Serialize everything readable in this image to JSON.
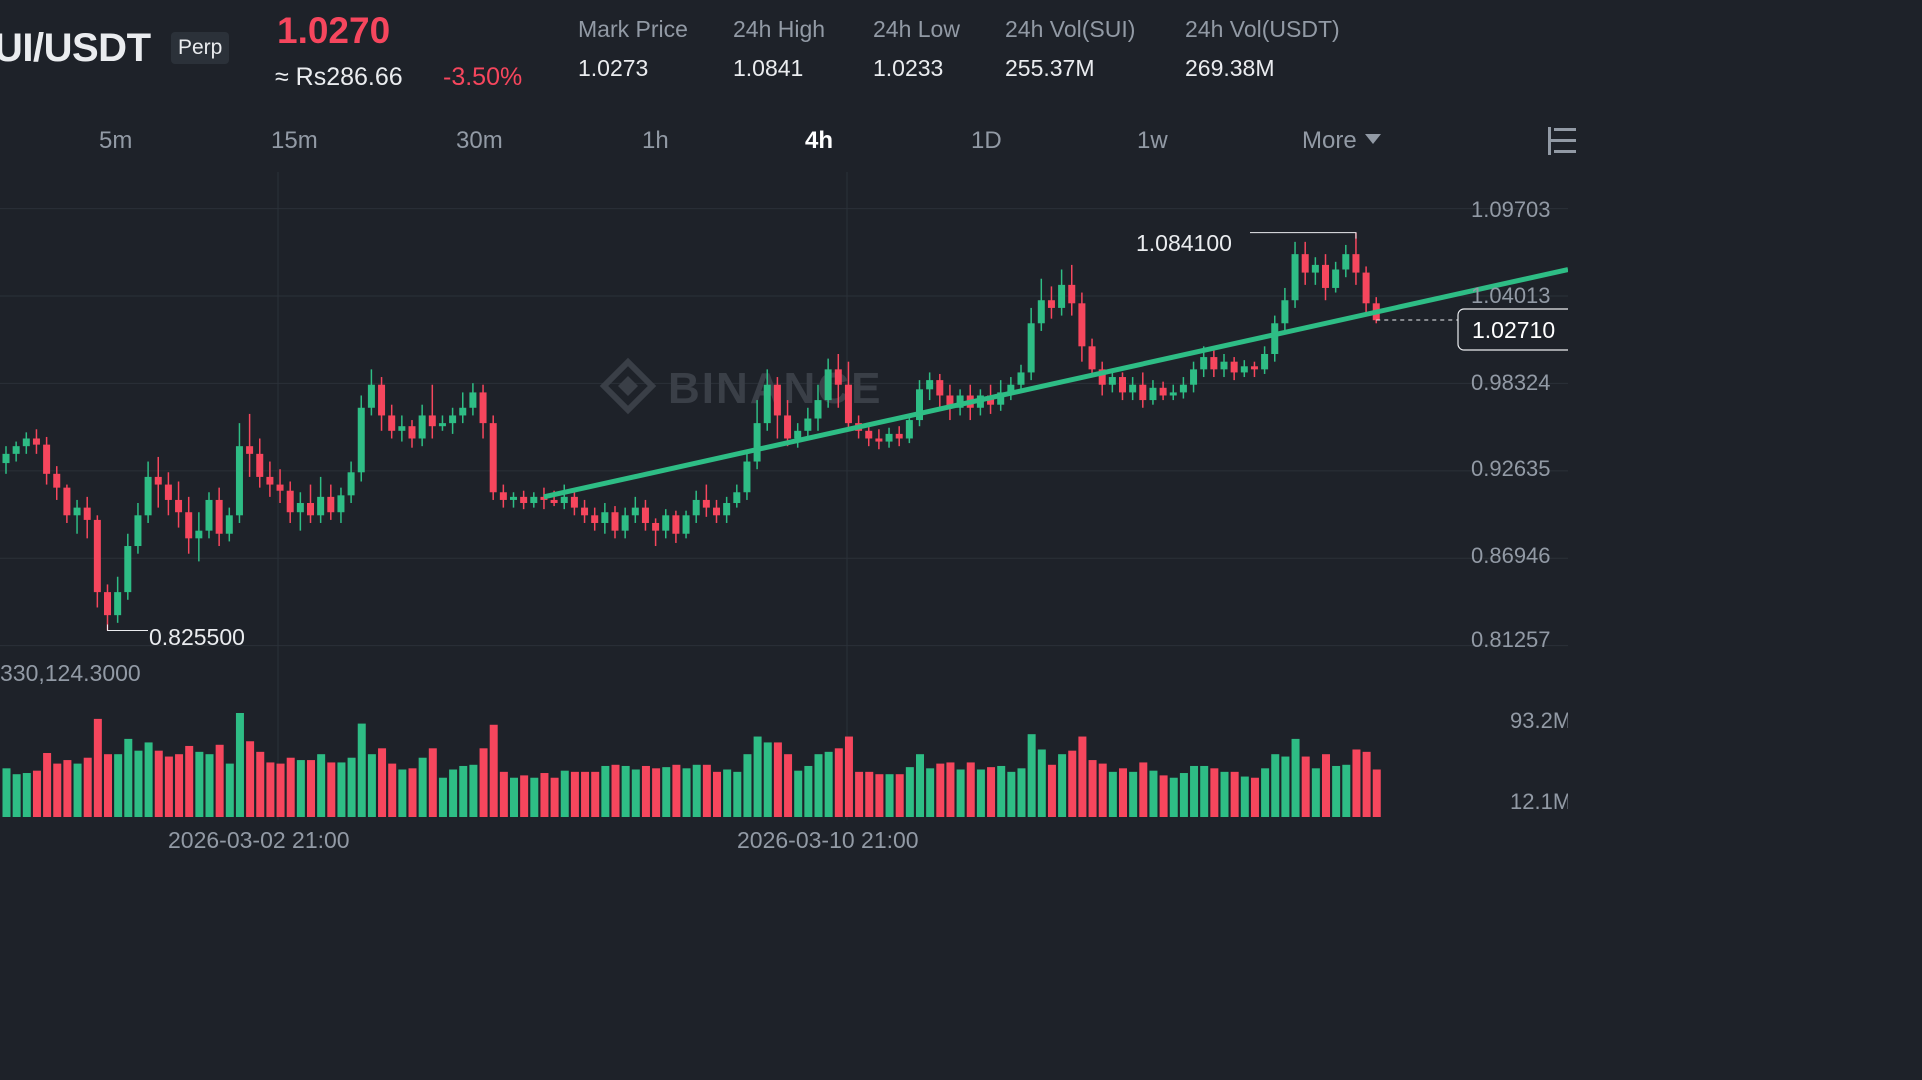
{
  "header": {
    "pair": "UI/USDT",
    "contract_type": "Perp",
    "last_price": "1.0270",
    "fiat_price": "≈ Rs286.66",
    "change_pct": "-3.50%",
    "stats": [
      {
        "label": "Mark Price",
        "value": "1.0273"
      },
      {
        "label": "24h High",
        "value": "1.0841"
      },
      {
        "label": "24h Low",
        "value": "1.0233"
      },
      {
        "label": "24h Vol(SUI)",
        "value": "255.37M"
      },
      {
        "label": "24h Vol(USDT)",
        "value": "269.38M"
      }
    ]
  },
  "timeframes": {
    "items": [
      "5m",
      "15m",
      "30m",
      "1h",
      "4h",
      "1D",
      "1w",
      "More"
    ],
    "active": "4h"
  },
  "icons": {
    "more": "caret-down-icon",
    "settings": "chart-settings-icon"
  },
  "colors": {
    "up": "#2ebd85",
    "down": "#f6465d",
    "trendline": "#2ebd85",
    "background": "#1e2229",
    "text_muted": "#929aa5"
  },
  "chart": {
    "watermark": "BINANCE",
    "price_axis": [
      "1.09703",
      "1.04013",
      "0.98324",
      "0.92635",
      "0.86946",
      "0.81257"
    ],
    "current_price_tag": "1.02710",
    "high_label": "1.084100",
    "low_label": "0.825500",
    "volume_header": "330,124.3000",
    "volume_axis": [
      "93.2M",
      "12.1M"
    ],
    "date_labels": [
      "2026-03-02 21:00",
      "2026-03-10 21:00"
    ]
  },
  "chart_data": {
    "type": "candlestick",
    "interval": "4h",
    "ylim": [
      0.7993,
      1.1085
    ],
    "y_ticks": [
      1.09703,
      1.04013,
      0.98324,
      0.92635,
      0.86946,
      0.81257
    ],
    "x_tick_labels": [
      "2026-03-02 21:00",
      "2026-03-10 21:00"
    ],
    "candles_ohlc": [
      [
        0.934,
        0.94,
        0.927,
        0.945
      ],
      [
        0.94,
        0.945,
        0.935,
        0.948
      ],
      [
        0.945,
        0.95,
        0.94,
        0.954
      ],
      [
        0.95,
        0.946,
        0.94,
        0.956
      ],
      [
        0.946,
        0.927,
        0.92,
        0.951
      ],
      [
        0.927,
        0.918,
        0.91,
        0.932
      ],
      [
        0.918,
        0.9,
        0.895,
        0.92
      ],
      [
        0.9,
        0.905,
        0.888,
        0.91
      ],
      [
        0.905,
        0.897,
        0.885,
        0.912
      ],
      [
        0.897,
        0.85,
        0.84,
        0.9
      ],
      [
        0.85,
        0.835,
        0.825,
        0.855
      ],
      [
        0.835,
        0.85,
        0.83,
        0.86
      ],
      [
        0.85,
        0.88,
        0.845,
        0.888
      ],
      [
        0.88,
        0.9,
        0.875,
        0.908
      ],
      [
        0.9,
        0.925,
        0.895,
        0.935
      ],
      [
        0.925,
        0.92,
        0.905,
        0.938
      ],
      [
        0.92,
        0.91,
        0.9,
        0.928
      ],
      [
        0.91,
        0.902,
        0.892,
        0.922
      ],
      [
        0.902,
        0.885,
        0.875,
        0.912
      ],
      [
        0.885,
        0.89,
        0.87,
        0.902
      ],
      [
        0.89,
        0.91,
        0.885,
        0.915
      ],
      [
        0.91,
        0.888,
        0.88,
        0.918
      ],
      [
        0.888,
        0.9,
        0.883,
        0.905
      ],
      [
        0.9,
        0.945,
        0.895,
        0.96
      ],
      [
        0.945,
        0.94,
        0.925,
        0.966
      ],
      [
        0.94,
        0.925,
        0.918,
        0.95
      ],
      [
        0.925,
        0.92,
        0.912,
        0.935
      ],
      [
        0.92,
        0.916,
        0.908,
        0.93
      ],
      [
        0.916,
        0.902,
        0.895,
        0.922
      ],
      [
        0.902,
        0.908,
        0.89,
        0.915
      ],
      [
        0.908,
        0.9,
        0.895,
        0.92
      ],
      [
        0.9,
        0.912,
        0.895,
        0.925
      ],
      [
        0.912,
        0.902,
        0.897,
        0.92
      ],
      [
        0.902,
        0.913,
        0.895,
        0.918
      ],
      [
        0.913,
        0.928,
        0.908,
        0.935
      ],
      [
        0.928,
        0.97,
        0.922,
        0.978
      ],
      [
        0.97,
        0.985,
        0.965,
        0.995
      ],
      [
        0.985,
        0.965,
        0.955,
        0.99
      ],
      [
        0.965,
        0.955,
        0.95,
        0.972
      ],
      [
        0.955,
        0.958,
        0.948,
        0.965
      ],
      [
        0.958,
        0.95,
        0.944,
        0.962
      ],
      [
        0.95,
        0.965,
        0.945,
        0.972
      ],
      [
        0.965,
        0.958,
        0.95,
        0.985
      ],
      [
        0.958,
        0.96,
        0.955,
        0.965
      ],
      [
        0.96,
        0.965,
        0.953,
        0.97
      ],
      [
        0.965,
        0.97,
        0.96,
        0.98
      ],
      [
        0.97,
        0.98,
        0.965,
        0.986
      ],
      [
        0.98,
        0.96,
        0.95,
        0.985
      ],
      [
        0.96,
        0.915,
        0.91,
        0.965
      ],
      [
        0.915,
        0.91,
        0.905,
        0.92
      ],
      [
        0.91,
        0.912,
        0.905,
        0.915
      ],
      [
        0.912,
        0.908,
        0.904,
        0.916
      ],
      [
        0.908,
        0.912,
        0.905,
        0.915
      ],
      [
        0.912,
        0.91,
        0.904,
        0.918
      ],
      [
        0.91,
        0.908,
        0.906,
        0.916
      ],
      [
        0.908,
        0.912,
        0.904,
        0.92
      ],
      [
        0.912,
        0.905,
        0.9,
        0.915
      ],
      [
        0.905,
        0.9,
        0.895,
        0.91
      ],
      [
        0.9,
        0.895,
        0.89,
        0.905
      ],
      [
        0.895,
        0.902,
        0.888,
        0.908
      ],
      [
        0.902,
        0.89,
        0.885,
        0.906
      ],
      [
        0.89,
        0.9,
        0.885,
        0.905
      ],
      [
        0.9,
        0.905,
        0.895,
        0.912
      ],
      [
        0.905,
        0.895,
        0.89,
        0.91
      ],
      [
        0.895,
        0.89,
        0.88,
        0.898
      ],
      [
        0.89,
        0.9,
        0.885,
        0.904
      ],
      [
        0.9,
        0.888,
        0.882,
        0.903
      ],
      [
        0.888,
        0.9,
        0.885,
        0.903
      ],
      [
        0.9,
        0.91,
        0.895,
        0.916
      ],
      [
        0.91,
        0.905,
        0.899,
        0.92
      ],
      [
        0.905,
        0.9,
        0.895,
        0.91
      ],
      [
        0.9,
        0.908,
        0.895,
        0.912
      ],
      [
        0.908,
        0.915,
        0.905,
        0.92
      ],
      [
        0.915,
        0.935,
        0.91,
        0.94
      ],
      [
        0.935,
        0.96,
        0.93,
        0.975
      ],
      [
        0.96,
        0.985,
        0.955,
        0.995
      ],
      [
        0.985,
        0.965,
        0.95,
        0.99
      ],
      [
        0.965,
        0.95,
        0.945,
        0.975
      ],
      [
        0.95,
        0.955,
        0.944,
        0.96
      ],
      [
        0.955,
        0.963,
        0.95,
        0.97
      ],
      [
        0.963,
        0.975,
        0.955,
        0.985
      ],
      [
        0.975,
        0.995,
        0.97,
        1.002
      ],
      [
        0.995,
        0.985,
        0.97,
        1.005
      ],
      [
        0.985,
        0.96,
        0.955,
        1.0
      ],
      [
        0.96,
        0.955,
        0.95,
        0.965
      ],
      [
        0.955,
        0.95,
        0.945,
        0.96
      ],
      [
        0.95,
        0.948,
        0.943,
        0.956
      ],
      [
        0.948,
        0.953,
        0.944,
        0.957
      ],
      [
        0.953,
        0.95,
        0.945,
        0.958
      ],
      [
        0.95,
        0.962,
        0.947,
        0.966
      ],
      [
        0.962,
        0.982,
        0.958,
        0.988
      ],
      [
        0.982,
        0.988,
        0.975,
        0.993
      ],
      [
        0.988,
        0.978,
        0.97,
        0.992
      ],
      [
        0.978,
        0.97,
        0.962,
        0.985
      ],
      [
        0.97,
        0.978,
        0.965,
        0.982
      ],
      [
        0.978,
        0.97,
        0.962,
        0.985
      ],
      [
        0.97,
        0.978,
        0.965,
        0.982
      ],
      [
        0.978,
        0.972,
        0.966,
        0.985
      ],
      [
        0.972,
        0.98,
        0.968,
        0.988
      ],
      [
        0.98,
        0.985,
        0.975,
        0.99
      ],
      [
        0.985,
        0.993,
        0.98,
        0.998
      ],
      [
        0.993,
        1.025,
        0.988,
        1.035
      ],
      [
        1.025,
        1.04,
        1.02,
        1.054
      ],
      [
        1.04,
        1.035,
        1.028,
        1.049
      ],
      [
        1.035,
        1.05,
        1.03,
        1.06
      ],
      [
        1.05,
        1.038,
        1.03,
        1.063
      ],
      [
        1.038,
        1.01,
        1.0,
        1.045
      ],
      [
        1.01,
        0.995,
        0.99,
        1.015
      ],
      [
        0.995,
        0.985,
        0.978,
        1.0
      ],
      [
        0.985,
        0.99,
        0.98,
        0.995
      ],
      [
        0.99,
        0.98,
        0.975,
        0.993
      ],
      [
        0.98,
        0.985,
        0.975,
        0.99
      ],
      [
        0.985,
        0.975,
        0.97,
        0.993
      ],
      [
        0.975,
        0.983,
        0.972,
        0.988
      ],
      [
        0.983,
        0.978,
        0.975,
        0.987
      ],
      [
        0.978,
        0.98,
        0.975,
        0.985
      ],
      [
        0.98,
        0.985,
        0.976,
        0.99
      ],
      [
        0.985,
        0.995,
        0.98,
        1.0
      ],
      [
        0.995,
        1.003,
        0.99,
        1.01
      ],
      [
        1.003,
        0.995,
        0.99,
        1.008
      ],
      [
        0.995,
        1.0,
        0.99,
        1.005
      ],
      [
        1.0,
        0.993,
        0.988,
        1.003
      ],
      [
        0.993,
        0.997,
        0.99,
        1.001
      ],
      [
        0.997,
        0.995,
        0.99,
        1.0
      ],
      [
        0.995,
        1.005,
        0.992,
        1.01
      ],
      [
        1.005,
        1.025,
        1.0,
        1.03
      ],
      [
        1.025,
        1.04,
        1.02,
        1.048
      ],
      [
        1.04,
        1.07,
        1.035,
        1.078
      ],
      [
        1.07,
        1.058,
        1.05,
        1.078
      ],
      [
        1.058,
        1.063,
        1.05,
        1.068
      ],
      [
        1.063,
        1.048,
        1.04,
        1.07
      ],
      [
        1.048,
        1.06,
        1.045,
        1.065
      ],
      [
        1.06,
        1.07,
        1.055,
        1.076
      ],
      [
        1.07,
        1.058,
        1.05,
        1.084
      ],
      [
        1.058,
        1.038,
        1.03,
        1.062
      ],
      [
        1.038,
        1.027,
        1.025,
        1.042
      ]
    ],
    "volume_axis_ticks": [
      "93.2M",
      "12.1M"
    ],
    "annotations": {
      "high": 1.0841,
      "low": 0.8255,
      "current": 1.0271
    },
    "trendline": {
      "from_candle": 53,
      "from_price": 0.912,
      "to_price": 1.06
    },
    "watermark": "BINANCE",
    "grid": true
  }
}
